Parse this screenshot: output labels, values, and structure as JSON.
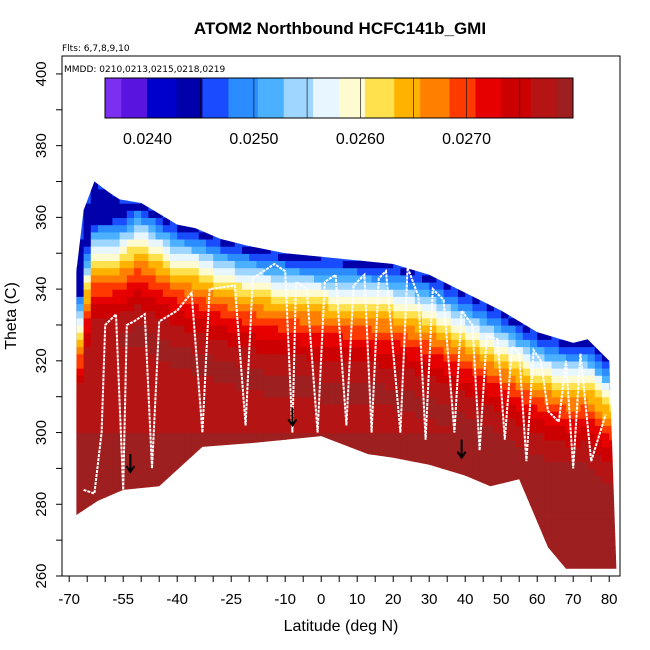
{
  "chart_data": {
    "type": "heatmap",
    "title": "ATOM2 Northbound HCFC141b_GMI",
    "notes": [
      "Flts: 6,7,8,9,10",
      "MMDD: 0210,0213,0215,0218,0219"
    ],
    "xlabel": "Latitude (deg N)",
    "ylabel": "Theta (C)",
    "xlim": [
      -72,
      83
    ],
    "ylim": [
      260,
      405
    ],
    "x_ticks": [
      -70,
      -55,
      -40,
      -25,
      -10,
      0,
      10,
      20,
      30,
      40,
      50,
      60,
      70,
      80
    ],
    "y_ticks": [
      260,
      280,
      300,
      320,
      340,
      360,
      380,
      400
    ],
    "colorbar": {
      "range": [
        0.0236,
        0.028
      ],
      "ticks": [
        0.024,
        0.025,
        0.026,
        0.027
      ],
      "tick_labels": [
        "0.0240",
        "0.0250",
        "0.0260",
        "0.0270"
      ],
      "colors": [
        "#7b2ff0",
        "#5a14e0",
        "#0000cc",
        "#0000aa",
        "#1a4cff",
        "#2b8cff",
        "#4ab0ff",
        "#9fd6ff",
        "#e8f6ff",
        "#fffbd0",
        "#ffe14d",
        "#ffb300",
        "#ff8000",
        "#ff3a00",
        "#e60000",
        "#cc0000",
        "#b41414",
        "#9e1f1f"
      ]
    },
    "field_boundary": {
      "top_theta": [
        [
          -68,
          345
        ],
        [
          -66,
          362
        ],
        [
          -63,
          370
        ],
        [
          -59,
          367
        ],
        [
          -56,
          365
        ],
        [
          -50,
          364
        ],
        [
          -45,
          361
        ],
        [
          -40,
          358
        ],
        [
          -35,
          357
        ],
        [
          -28,
          354
        ],
        [
          -20,
          352
        ],
        [
          -10,
          350
        ],
        [
          0,
          349
        ],
        [
          10,
          348
        ],
        [
          20,
          347
        ],
        [
          30,
          344
        ],
        [
          40,
          339
        ],
        [
          50,
          334
        ],
        [
          60,
          328
        ],
        [
          70,
          325
        ],
        [
          74,
          326
        ],
        [
          80,
          320
        ]
      ],
      "bottom_theta": [
        [
          -68,
          277
        ],
        [
          -62,
          281
        ],
        [
          -55,
          284
        ],
        [
          -45,
          285
        ],
        [
          -33,
          296
        ],
        [
          -20,
          297
        ],
        [
          -10,
          298
        ],
        [
          0,
          299
        ],
        [
          13,
          294
        ],
        [
          20,
          293
        ],
        [
          30,
          291
        ],
        [
          40,
          288
        ],
        [
          47,
          285
        ],
        [
          55,
          287
        ],
        [
          63,
          268
        ],
        [
          68,
          262
        ],
        [
          82,
          262
        ]
      ]
    },
    "flight_track": [
      [
        -66,
        284
      ],
      [
        -63,
        283
      ],
      [
        -61,
        300
      ],
      [
        -60,
        330
      ],
      [
        -57,
        333
      ],
      [
        -55,
        284
      ],
      [
        -54,
        330
      ],
      [
        -52,
        331
      ],
      [
        -49,
        333
      ],
      [
        -47,
        290
      ],
      [
        -45,
        331
      ],
      [
        -40,
        334
      ],
      [
        -36,
        339
      ],
      [
        -33,
        300
      ],
      [
        -31,
        340
      ],
      [
        -24,
        341
      ],
      [
        -21,
        302
      ],
      [
        -19,
        343
      ],
      [
        -13,
        347
      ],
      [
        -10,
        345
      ],
      [
        -8,
        300
      ],
      [
        -7,
        342
      ],
      [
        -4,
        340
      ],
      [
        -1,
        300
      ],
      [
        1,
        342
      ],
      [
        4,
        344
      ],
      [
        7,
        302
      ],
      [
        9,
        341
      ],
      [
        12,
        344
      ],
      [
        14,
        300
      ],
      [
        16,
        343
      ],
      [
        18,
        345
      ],
      [
        22,
        300
      ],
      [
        24,
        346
      ],
      [
        27,
        338
      ],
      [
        29,
        298
      ],
      [
        31,
        340
      ],
      [
        34,
        337
      ],
      [
        37,
        300
      ],
      [
        39,
        334
      ],
      [
        42,
        330
      ],
      [
        44,
        295
      ],
      [
        46,
        327
      ],
      [
        49,
        326
      ],
      [
        51,
        298
      ],
      [
        53,
        324
      ],
      [
        55,
        322
      ],
      [
        57,
        292
      ],
      [
        59,
        323
      ],
      [
        61,
        320
      ],
      [
        63,
        306
      ],
      [
        66,
        303
      ],
      [
        68,
        320
      ],
      [
        70,
        290
      ],
      [
        72,
        322
      ],
      [
        75,
        292
      ],
      [
        79,
        305
      ]
    ],
    "markers": [
      {
        "lat": -53,
        "theta": 289
      },
      {
        "lat": -8,
        "theta": 302
      },
      {
        "lat": 39,
        "theta": 293
      }
    ]
  }
}
